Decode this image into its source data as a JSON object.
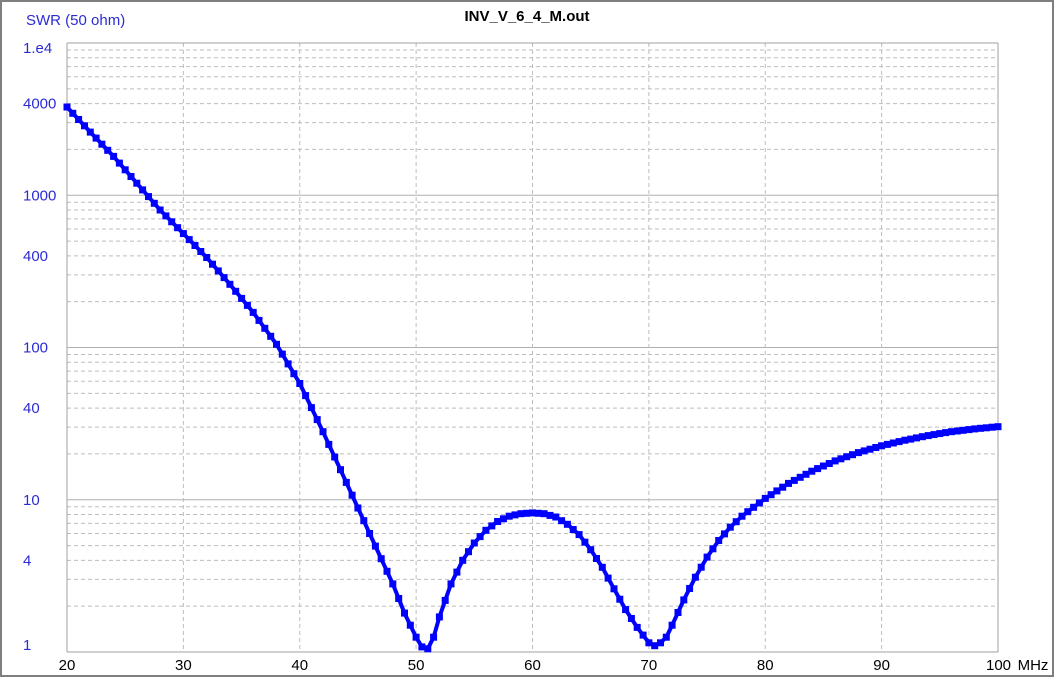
{
  "chart_data": {
    "type": "line",
    "title": "INV_V_6_4_M.out",
    "ylabel": "SWR (50 ohm)",
    "xunit": "MHz",
    "y_scale": "log",
    "xlim": [
      20,
      100
    ],
    "ylim": [
      1,
      10000
    ],
    "grid": true,
    "color": "#0000ff",
    "x_ticks": [
      20,
      30,
      40,
      50,
      60,
      70,
      80,
      90,
      100
    ],
    "x_tick_labels": [
      "20",
      "30",
      "40",
      "50",
      "60",
      "70",
      "80",
      "90",
      "100"
    ],
    "y_ticks": [
      1,
      4,
      10,
      40,
      100,
      400,
      1000,
      4000,
      10000
    ],
    "y_tick_labels": [
      "1",
      "4",
      "10",
      "40",
      "100",
      "400",
      "1000",
      "4000",
      "1.e4"
    ],
    "series": [
      {
        "x": [
          20,
          22,
          24,
          26,
          28,
          30,
          32,
          34,
          36,
          38,
          40,
          42,
          44,
          46,
          48,
          49,
          50,
          50.5,
          51,
          51.5,
          52,
          53,
          54,
          55,
          56,
          57,
          58,
          59,
          60,
          61,
          62,
          63,
          64,
          65,
          66,
          67,
          68,
          69,
          70,
          70.5,
          71,
          71.5,
          72,
          73,
          74,
          75,
          76,
          77,
          78,
          80,
          82,
          84,
          86,
          88,
          90,
          92,
          94,
          96,
          98,
          100
        ],
        "values": [
          3800,
          2600,
          1800,
          1200,
          800,
          560,
          390,
          260,
          170,
          105,
          58,
          28,
          13,
          6.0,
          2.8,
          1.8,
          1.25,
          1.08,
          1.05,
          1.25,
          1.7,
          2.8,
          4.0,
          5.2,
          6.3,
          7.2,
          7.8,
          8.1,
          8.2,
          8.1,
          7.7,
          6.9,
          5.9,
          4.7,
          3.6,
          2.6,
          1.9,
          1.45,
          1.15,
          1.1,
          1.15,
          1.25,
          1.5,
          2.2,
          3.1,
          4.2,
          5.4,
          6.6,
          7.8,
          10.2,
          12.8,
          15.4,
          18.0,
          20.4,
          22.6,
          24.6,
          26.4,
          28.0,
          29.2,
          30.2
        ]
      }
    ]
  }
}
